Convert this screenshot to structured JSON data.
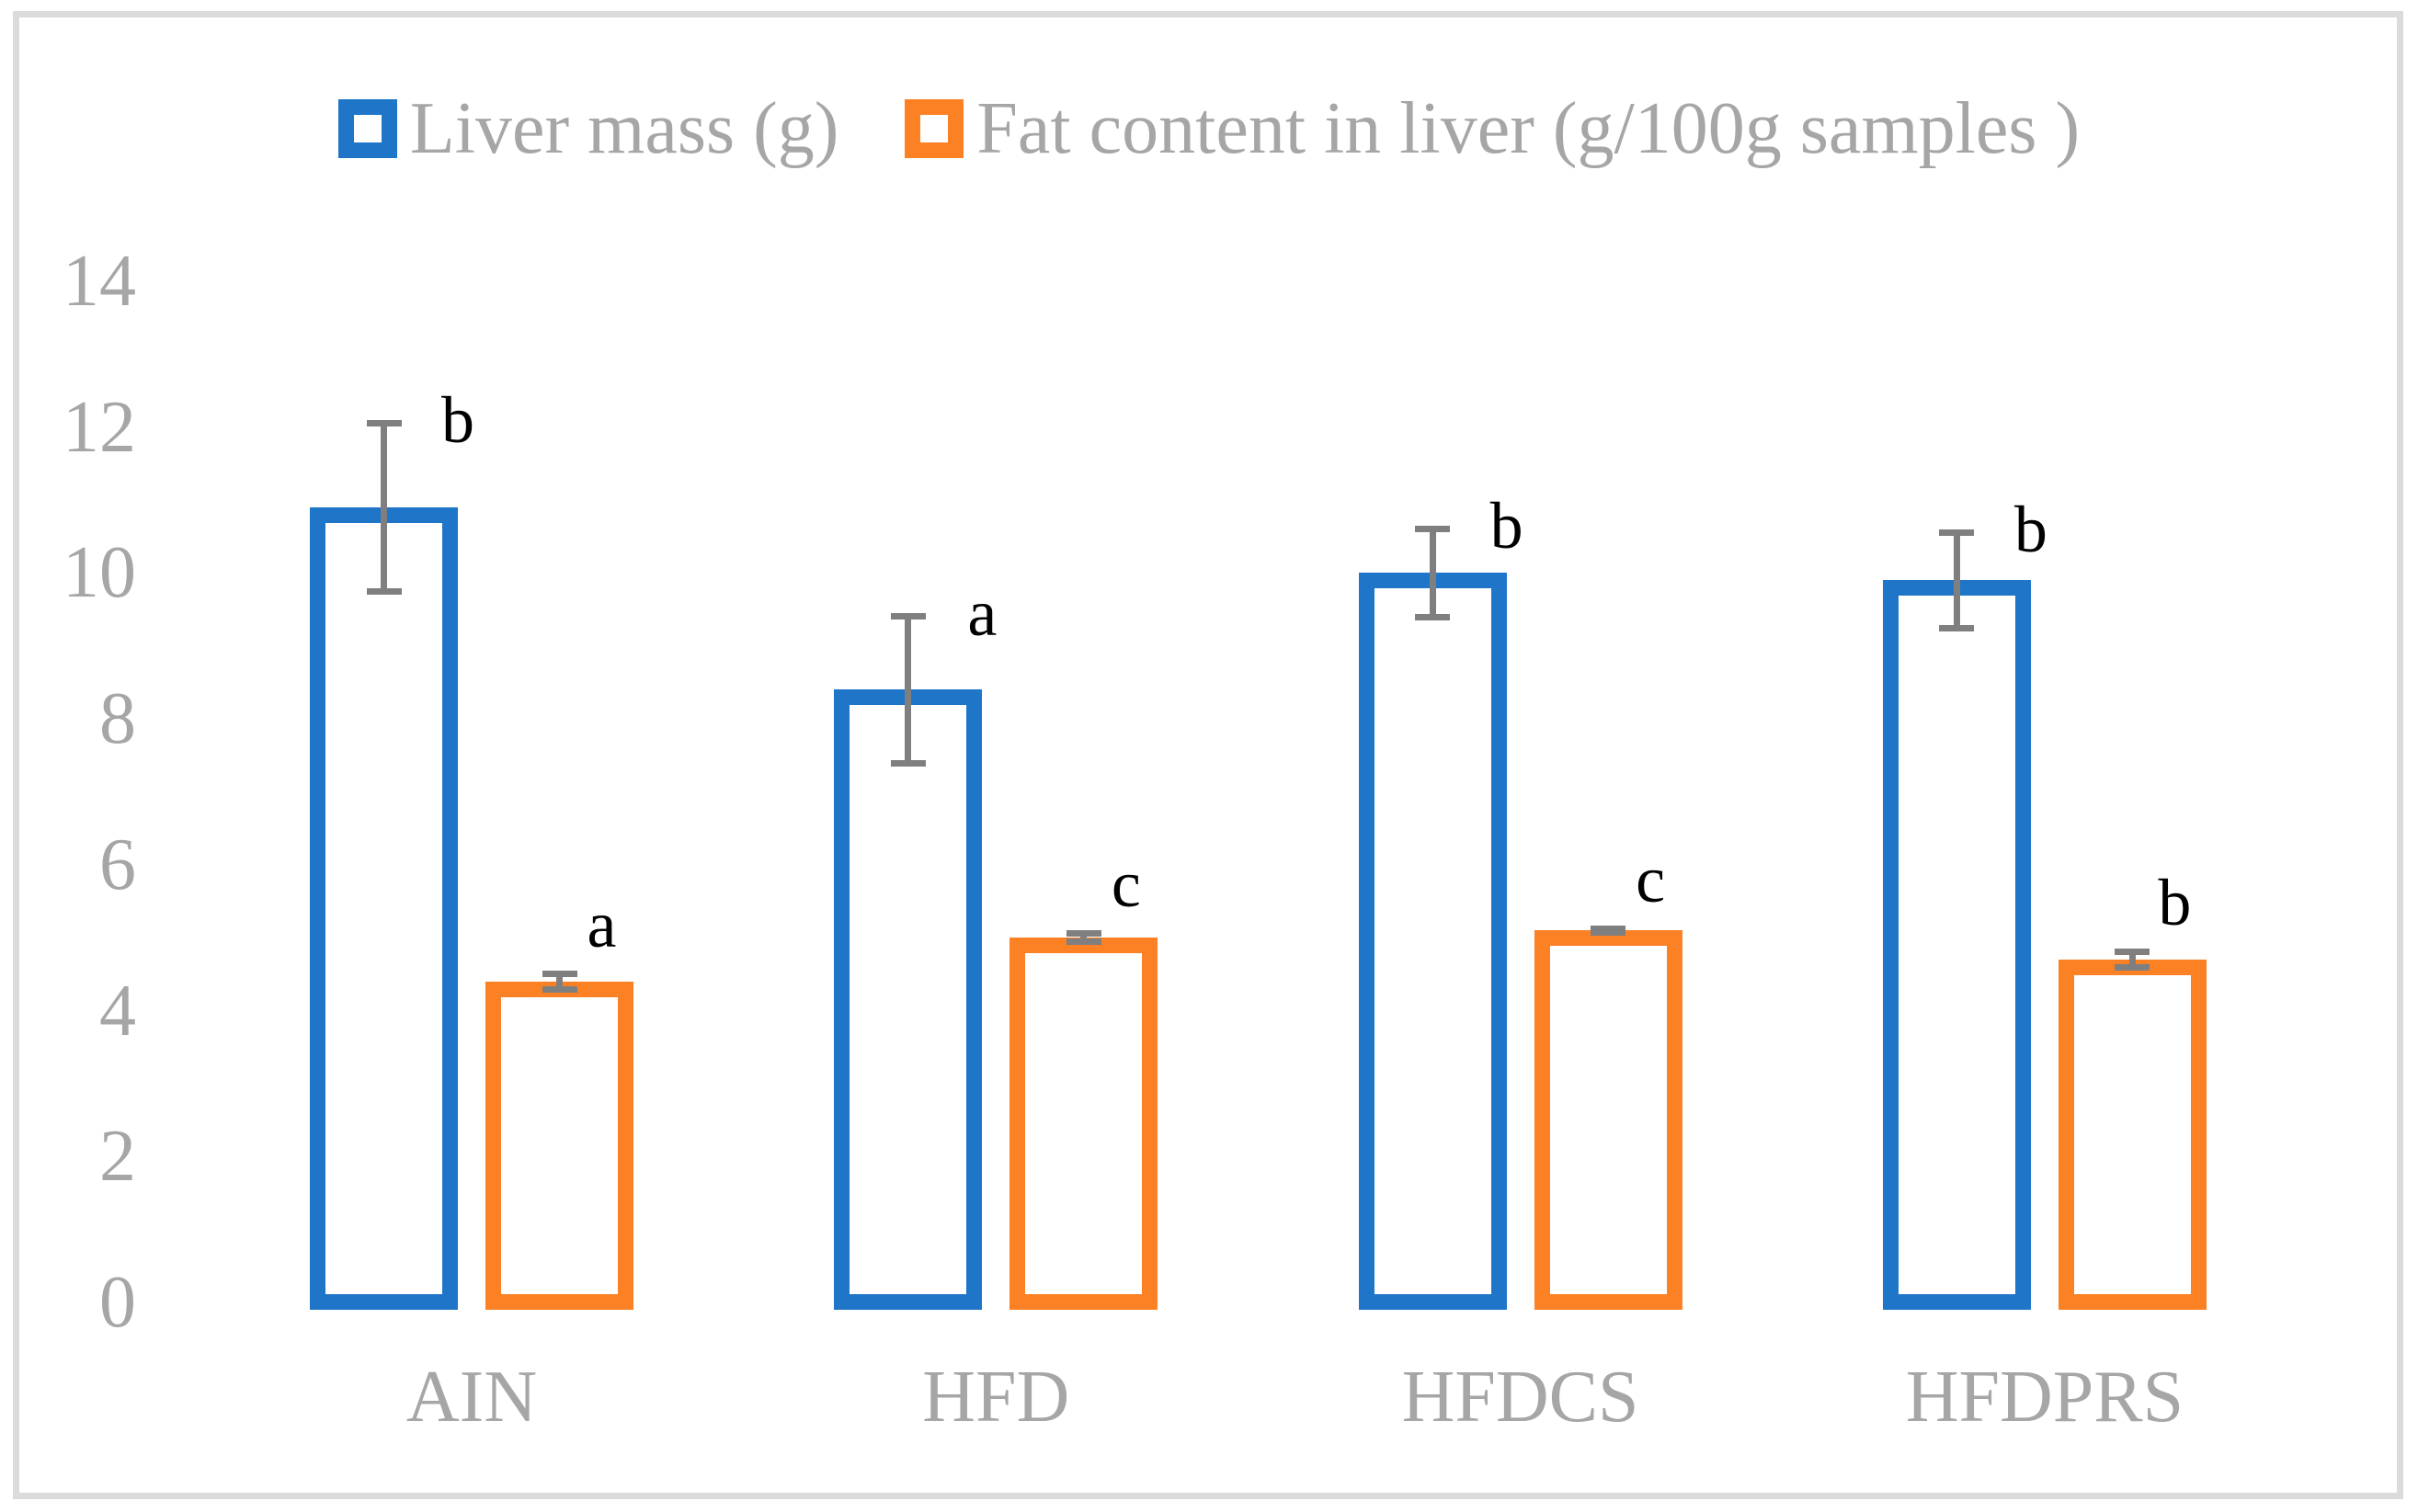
{
  "figure": {
    "frame_border_color": "#dbdbdb",
    "background_color": "#ffffff",
    "axis_text_color": "#a6a6a6",
    "error_bar_color": "#7f7f7f",
    "sig_letter_color": "#000000"
  },
  "legend": {
    "position": "top-center",
    "items": [
      {
        "label": "Liver mass (g)",
        "color": "#1f76c9",
        "swatch": "hollow-square"
      },
      {
        "label": "Fat content in liver (g/100g samples )",
        "color": "#fb8124",
        "swatch": "hollow-square"
      }
    ]
  },
  "chart_data": {
    "type": "bar",
    "title": "",
    "xlabel": "",
    "ylabel": "",
    "categories": [
      "AIN",
      "HFD",
      "HFDCS",
      "HFDPRS"
    ],
    "series": [
      {
        "name": "Liver mass (g)",
        "color": "#1f76c9",
        "values": [
          11.0,
          8.5,
          10.1,
          10.0
        ],
        "errors": [
          1.2,
          1.05,
          0.65,
          0.7
        ],
        "sig_letters": [
          "b",
          "a",
          "b",
          "b"
        ]
      },
      {
        "name": "Fat content in liver (g/100g samples )",
        "color": "#fb8124",
        "values": [
          4.5,
          5.1,
          5.2,
          4.8
        ],
        "errors": [
          0.15,
          0.1,
          0.07,
          0.15
        ],
        "sig_letters": [
          "a",
          "c",
          "c",
          "b"
        ]
      }
    ],
    "ylim": [
      0,
      14
    ],
    "yticks": [
      14,
      12,
      10,
      8,
      6,
      4,
      2,
      0
    ],
    "grid": false,
    "axis_lines": false,
    "bar_style": "hollow-outline",
    "legend_position": "top"
  }
}
